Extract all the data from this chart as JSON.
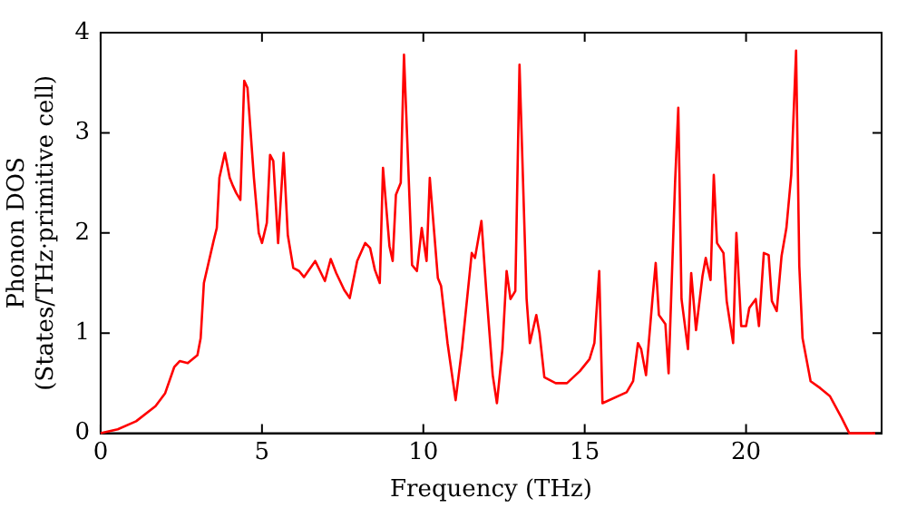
{
  "chart_data": {
    "type": "line",
    "xlabel": "Frequency (THz)",
    "ylabel": "Phonon DOS\n(States/THz·primitive cell)",
    "x": [
      0,
      0.53,
      1.1,
      1.7,
      2.0,
      2.28,
      2.45,
      2.7,
      3.0,
      3.1,
      3.2,
      3.5,
      3.6,
      3.68,
      3.85,
      4.0,
      4.1,
      4.2,
      4.33,
      4.45,
      4.55,
      4.75,
      4.9,
      5.0,
      5.15,
      5.25,
      5.35,
      5.5,
      5.67,
      5.8,
      5.97,
      6.15,
      6.3,
      6.65,
      6.95,
      7.13,
      7.3,
      7.55,
      7.72,
      7.95,
      8.2,
      8.35,
      8.5,
      8.65,
      8.75,
      8.95,
      9.05,
      9.15,
      9.3,
      9.4,
      9.65,
      9.8,
      9.95,
      10.1,
      10.2,
      10.45,
      10.55,
      10.75,
      11.0,
      11.2,
      11.5,
      11.6,
      11.8,
      11.95,
      12.15,
      12.28,
      12.45,
      12.58,
      12.7,
      12.85,
      12.98,
      13.2,
      13.3,
      13.5,
      13.6,
      13.75,
      14.1,
      14.45,
      14.85,
      15.15,
      15.3,
      15.45,
      15.55,
      16.3,
      16.5,
      16.65,
      16.75,
      16.9,
      17.1,
      17.2,
      17.3,
      17.5,
      17.6,
      17.8,
      17.9,
      18.0,
      18.2,
      18.3,
      18.45,
      18.65,
      18.75,
      18.9,
      19.0,
      19.1,
      19.3,
      19.4,
      19.6,
      19.7,
      19.85,
      20.0,
      20.1,
      20.3,
      20.4,
      20.55,
      20.7,
      20.8,
      20.95,
      21.1,
      21.25,
      21.4,
      21.55,
      21.65,
      21.75,
      22.0,
      22.3,
      22.6,
      22.7,
      22.95,
      23.2,
      24.0
    ],
    "series": [
      {
        "color": "#ff0000",
        "values": [
          0,
          0.04,
          0.12,
          0.27,
          0.4,
          0.66,
          0.72,
          0.7,
          0.78,
          0.95,
          1.5,
          1.92,
          2.05,
          2.55,
          2.8,
          2.55,
          2.47,
          2.4,
          2.33,
          3.52,
          3.45,
          2.55,
          2.0,
          1.9,
          2.1,
          2.78,
          2.72,
          1.9,
          2.8,
          1.98,
          1.65,
          1.62,
          1.56,
          1.72,
          1.52,
          1.74,
          1.6,
          1.43,
          1.35,
          1.72,
          1.9,
          1.85,
          1.63,
          1.5,
          2.65,
          1.87,
          1.72,
          2.38,
          2.5,
          3.78,
          1.68,
          1.62,
          2.05,
          1.72,
          2.55,
          1.55,
          1.47,
          0.9,
          0.33,
          0.85,
          1.8,
          1.75,
          2.12,
          1.42,
          0.58,
          0.3,
          0.84,
          1.62,
          1.34,
          1.42,
          3.68,
          1.34,
          0.9,
          1.18,
          1.0,
          0.56,
          0.5,
          0.5,
          0.62,
          0.74,
          0.9,
          1.62,
          0.3,
          0.41,
          0.52,
          0.9,
          0.84,
          0.58,
          1.34,
          1.7,
          1.18,
          1.09,
          0.6,
          2.5,
          3.25,
          1.34,
          0.84,
          1.6,
          1.03,
          1.57,
          1.75,
          1.53,
          2.58,
          1.9,
          1.8,
          1.32,
          0.9,
          2.0,
          1.07,
          1.07,
          1.25,
          1.34,
          1.07,
          1.8,
          1.78,
          1.32,
          1.22,
          1.77,
          2.05,
          2.58,
          3.82,
          1.67,
          0.95,
          0.52,
          0.45,
          0.37,
          0.31,
          0.16,
          0,
          0
        ]
      }
    ],
    "xlim": [
      0,
      24.2
    ],
    "ylim": [
      0,
      4
    ],
    "xticks": [
      0,
      5,
      10,
      15,
      20
    ],
    "yticks": [
      0,
      1,
      2,
      3,
      4
    ],
    "grid": false,
    "legend": false,
    "marker": "none",
    "line_style": "solid"
  }
}
